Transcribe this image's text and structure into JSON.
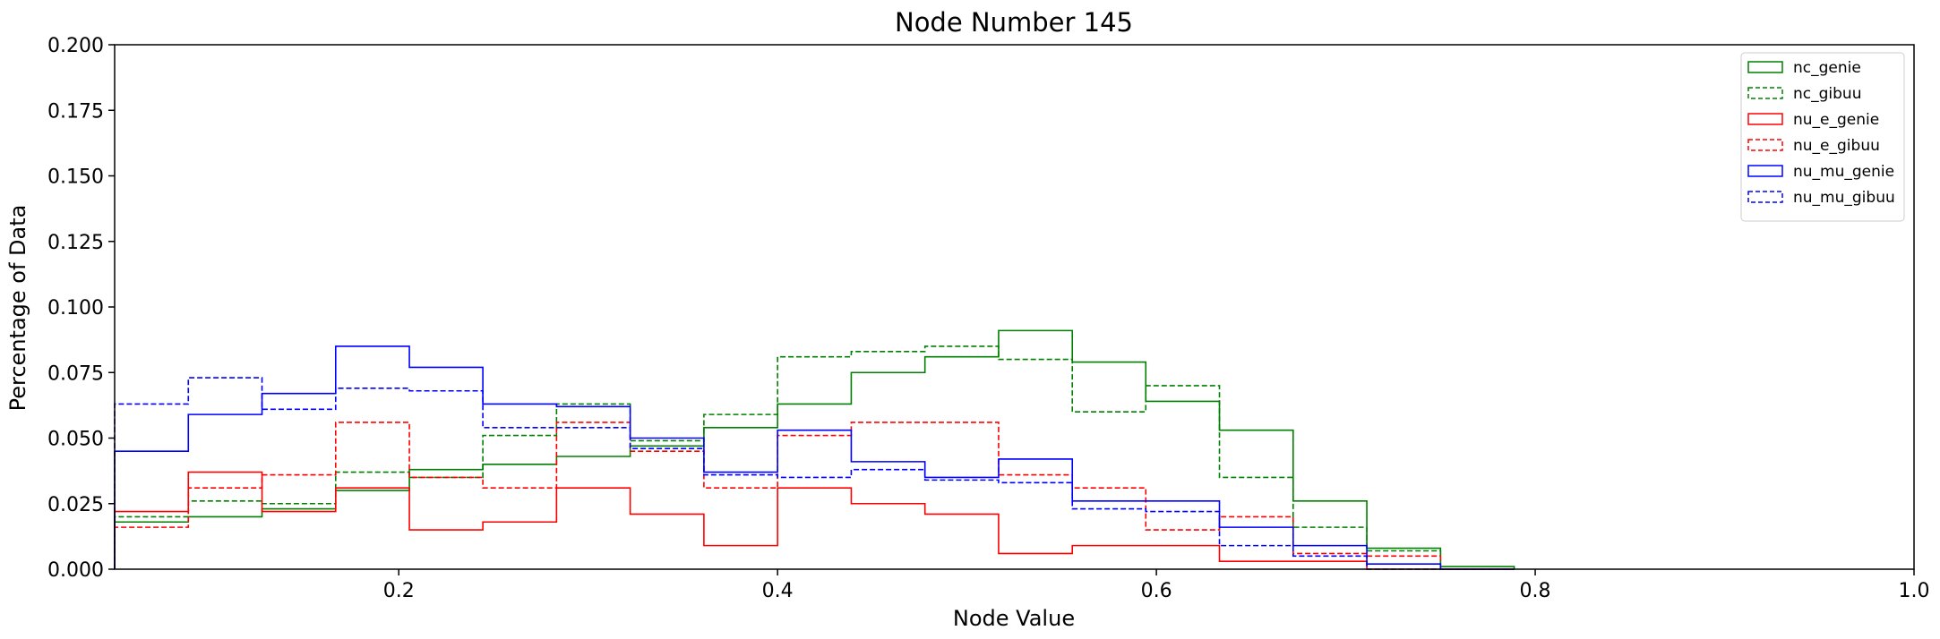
{
  "chart_data": {
    "type": "histogram",
    "title": "Node Number 145",
    "xlabel": "Node Value",
    "ylabel": "Percentage of Data",
    "xlim": [
      0.05,
      1.0
    ],
    "ylim": [
      0.0,
      0.2
    ],
    "x_ticks": [
      0.2,
      0.4,
      0.6,
      0.8,
      1.0
    ],
    "x_tick_labels": [
      "0.2",
      "0.4",
      "0.6",
      "0.8",
      "1.0"
    ],
    "y_ticks": [
      0.0,
      0.025,
      0.05,
      0.075,
      0.1,
      0.125,
      0.15,
      0.175,
      0.2
    ],
    "y_tick_labels": [
      "0.000",
      "0.025",
      "0.050",
      "0.075",
      "0.100",
      "0.125",
      "0.150",
      "0.175",
      "0.200"
    ],
    "grid": false,
    "legend_position": "top-right",
    "bin_edges": [
      0.05,
      0.0889,
      0.1278,
      0.1667,
      0.2056,
      0.2444,
      0.2833,
      0.3222,
      0.3611,
      0.4,
      0.4389,
      0.4778,
      0.5167,
      0.5556,
      0.5944,
      0.6333,
      0.6722,
      0.7111,
      0.75,
      0.7889
    ],
    "series": [
      {
        "name": "nc_genie",
        "color": "#008000",
        "dashed": false,
        "values": [
          0.018,
          0.02,
          0.023,
          0.03,
          0.038,
          0.04,
          0.043,
          0.047,
          0.054,
          0.063,
          0.075,
          0.081,
          0.091,
          0.079,
          0.064,
          0.053,
          0.026,
          0.008,
          0.001
        ]
      },
      {
        "name": "nc_gibuu",
        "color": "#008000",
        "dashed": true,
        "values": [
          0.02,
          0.026,
          0.025,
          0.037,
          0.035,
          0.051,
          0.063,
          0.049,
          0.059,
          0.081,
          0.083,
          0.085,
          0.08,
          0.06,
          0.07,
          0.035,
          0.016,
          0.007,
          0.0
        ]
      },
      {
        "name": "nu_e_genie",
        "color": "#ff0000",
        "dashed": false,
        "values": [
          0.022,
          0.037,
          0.022,
          0.031,
          0.015,
          0.018,
          0.031,
          0.021,
          0.009,
          0.031,
          0.025,
          0.021,
          0.006,
          0.009,
          0.009,
          0.003,
          0.003,
          0.0,
          0.0
        ]
      },
      {
        "name": "nu_e_gibuu",
        "color": "#ff0000",
        "dashed": true,
        "values": [
          0.016,
          0.031,
          0.036,
          0.056,
          0.035,
          0.031,
          0.056,
          0.045,
          0.031,
          0.051,
          0.056,
          0.056,
          0.036,
          0.031,
          0.015,
          0.02,
          0.006,
          0.005,
          0.0
        ]
      },
      {
        "name": "nu_mu_genie",
        "color": "#0000ff",
        "dashed": false,
        "values": [
          0.045,
          0.059,
          0.067,
          0.085,
          0.077,
          0.063,
          0.062,
          0.05,
          0.037,
          0.053,
          0.041,
          0.035,
          0.042,
          0.026,
          0.026,
          0.016,
          0.009,
          0.002,
          0.0
        ]
      },
      {
        "name": "nu_mu_gibuu",
        "color": "#0000ff",
        "dashed": true,
        "values": [
          0.063,
          0.073,
          0.061,
          0.069,
          0.068,
          0.054,
          0.054,
          0.046,
          0.036,
          0.035,
          0.038,
          0.034,
          0.033,
          0.023,
          0.022,
          0.009,
          0.005,
          0.0,
          0.0
        ]
      }
    ]
  }
}
